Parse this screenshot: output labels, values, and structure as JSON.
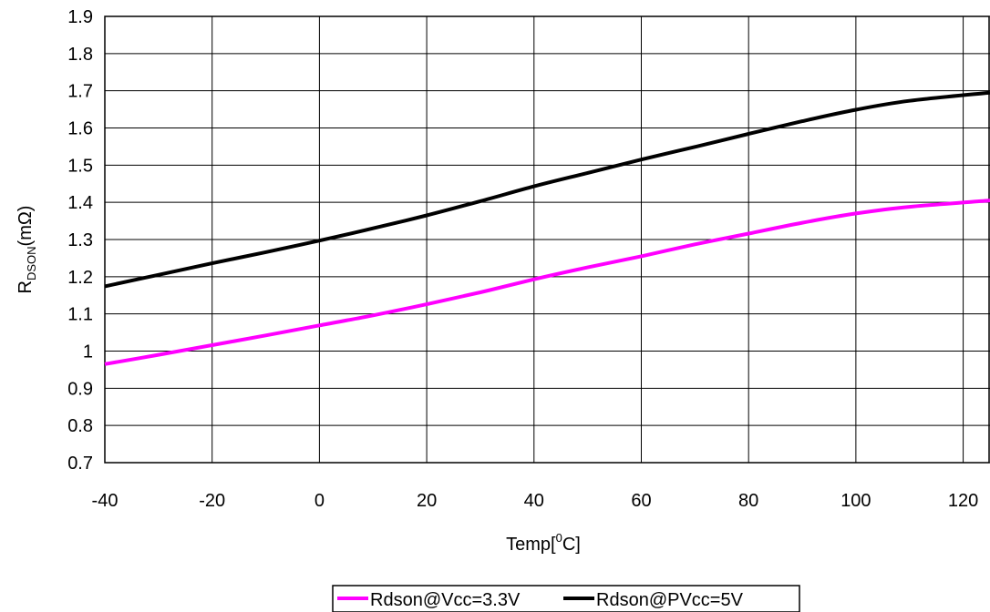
{
  "chart_data": {
    "type": "line",
    "title": "",
    "xlabel": "Temp[0C]",
    "xlabel_parts": {
      "main": "Temp[",
      "superscript": "0",
      "suffix": "C]"
    },
    "ylabel": "RDSON(mΩ)",
    "ylabel_parts": {
      "main": "R",
      "subscript": "DSON",
      "suffix": "(mΩ)"
    },
    "xlim": [
      -40,
      125
    ],
    "ylim": [
      0.7,
      1.9
    ],
    "xticks": [
      -40,
      -20,
      0,
      20,
      40,
      60,
      80,
      100,
      120
    ],
    "yticks": [
      0.7,
      0.8,
      0.9,
      1,
      1.1,
      1.2,
      1.3,
      1.4,
      1.5,
      1.6,
      1.7,
      1.8,
      1.9
    ],
    "ytick_labels": [
      "0.7",
      "0.8",
      "0.9",
      "1",
      "1.1",
      "1.2",
      "1.3",
      "1.4",
      "1.5",
      "1.6",
      "1.7",
      "1.8",
      "1.9"
    ],
    "grid": true,
    "legend_position": "bottom-center",
    "series": [
      {
        "name": "Rdson@Vcc=3.3V",
        "color": "#FF00FF",
        "x": [
          -40,
          -30,
          -20,
          -10,
          0,
          10,
          20,
          30,
          40,
          50,
          60,
          70,
          80,
          90,
          100,
          110,
          125
        ],
        "y": [
          0.965,
          0.99,
          1.016,
          1.042,
          1.069,
          1.096,
          1.126,
          1.158,
          1.193,
          1.225,
          1.255,
          1.287,
          1.316,
          1.345,
          1.37,
          1.388,
          1.405
        ]
      },
      {
        "name": "Rdson@PVcc=5V",
        "color": "#000000",
        "x": [
          -40,
          -30,
          -20,
          -10,
          0,
          10,
          20,
          30,
          40,
          50,
          60,
          70,
          80,
          90,
          100,
          110,
          125
        ],
        "y": [
          1.174,
          1.205,
          1.236,
          1.266,
          1.297,
          1.33,
          1.365,
          1.403,
          1.443,
          1.479,
          1.515,
          1.549,
          1.584,
          1.618,
          1.649,
          1.673,
          1.695
        ]
      }
    ]
  }
}
